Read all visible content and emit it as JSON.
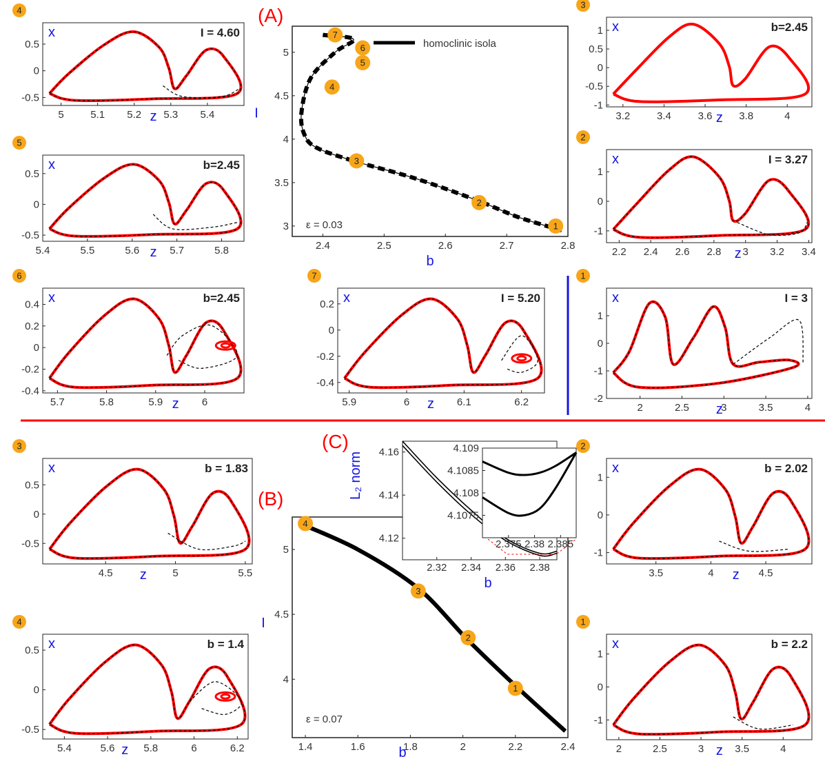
{
  "figure": {
    "labels": {
      "A": "(A)",
      "B": "(B)",
      "C": "(C)"
    },
    "colors": {
      "red": "#ff0000",
      "black": "#000000",
      "blue": "#1515e0",
      "badge": "#f7a619"
    }
  },
  "chart_data": [
    {
      "id": "A_main",
      "type": "line",
      "title": "",
      "xlabel": "b",
      "ylabel": "I",
      "xlim": [
        2.35,
        2.8
      ],
      "ylim": [
        2.88,
        5.3
      ],
      "xticks": [
        2.4,
        2.5,
        2.6,
        2.7,
        2.8
      ],
      "yticks": [
        3,
        3.5,
        4,
        4.5,
        5
      ],
      "legend": "homoclinic isola",
      "annotation": "ε = 0.03",
      "series": [
        {
          "name": "homoclinic isola",
          "x": [
            2.4,
            2.45,
            2.42,
            2.38,
            2.365,
            2.37,
            2.39,
            2.45,
            2.55,
            2.65,
            2.72,
            2.79
          ],
          "y": [
            5.2,
            5.15,
            5.0,
            4.7,
            4.3,
            4.05,
            3.9,
            3.75,
            3.55,
            3.3,
            3.1,
            2.95
          ]
        }
      ],
      "markers": [
        {
          "label": "7",
          "x": 2.42,
          "y": 5.2
        },
        {
          "label": "6",
          "x": 2.465,
          "y": 5.05
        },
        {
          "label": "5",
          "x": 2.465,
          "y": 4.88
        },
        {
          "label": "4",
          "x": 2.415,
          "y": 4.6
        },
        {
          "label": "3",
          "x": 2.455,
          "y": 3.75
        },
        {
          "label": "2",
          "x": 2.655,
          "y": 3.27
        },
        {
          "label": "1",
          "x": 2.78,
          "y": 3.0
        }
      ]
    },
    {
      "id": "B_main",
      "type": "line",
      "title": "",
      "xlabel": "b",
      "ylabel": "I",
      "xlim": [
        1.35,
        2.4
      ],
      "ylim": [
        3.55,
        5.25
      ],
      "xticks": [
        1.4,
        1.6,
        1.8,
        2,
        2.2,
        2.4
      ],
      "yticks": [
        4,
        4.5,
        5
      ],
      "annotation": "ε = 0.07",
      "series": [
        {
          "name": "",
          "x": [
            1.38,
            1.6,
            1.83,
            2.02,
            2.2,
            2.39
          ],
          "y": [
            5.2,
            5.0,
            4.7,
            4.3,
            3.95,
            3.6
          ]
        }
      ],
      "markers": [
        {
          "label": "4",
          "x": 1.4,
          "y": 5.2
        },
        {
          "label": "3",
          "x": 1.83,
          "y": 4.68
        },
        {
          "label": "2",
          "x": 2.02,
          "y": 4.32
        },
        {
          "label": "1",
          "x": 2.2,
          "y": 3.93
        }
      ]
    },
    {
      "id": "C_inset",
      "type": "line",
      "title": "",
      "xlabel": "b",
      "ylabel": "L₂ norm",
      "xlim": [
        2.3,
        2.39
      ],
      "ylim": [
        4.11,
        4.165
      ],
      "xticks": [
        2.32,
        2.34,
        2.36,
        2.38
      ],
      "yticks": [
        4.12,
        4.14,
        4.16
      ],
      "series": [
        {
          "name": "",
          "x": [
            2.3,
            2.32,
            2.34,
            2.36,
            2.38,
            2.39
          ],
          "y": [
            4.165,
            4.148,
            4.133,
            4.12,
            4.113,
            4.114
          ]
        },
        {
          "name": "",
          "x": [
            2.3,
            2.32,
            2.34,
            2.36,
            2.38,
            2.39
          ],
          "y": [
            4.163,
            4.146,
            4.131,
            4.119,
            4.112,
            4.113
          ]
        }
      ]
    },
    {
      "id": "C_zoom",
      "type": "line",
      "title": "",
      "xlabel": "",
      "ylabel": "",
      "xlim": [
        2.37,
        2.388
      ],
      "ylim": [
        4.107,
        4.109
      ],
      "xticks": [
        2.375,
        2.38,
        2.385
      ],
      "yticks": [
        4.1075,
        4.108,
        4.1085,
        4.109
      ],
      "series": [
        {
          "name": "",
          "x": [
            2.37,
            2.375,
            2.378,
            2.381,
            2.384,
            2.388
          ],
          "y": [
            4.1087,
            4.10845,
            4.1084,
            4.10845,
            4.1086,
            4.1089
          ]
        },
        {
          "name": "",
          "x": [
            2.37,
            2.375,
            2.378,
            2.381,
            2.384,
            2.388
          ],
          "y": [
            4.1079,
            4.10755,
            4.1075,
            4.10765,
            4.1081,
            4.1089
          ]
        }
      ]
    },
    {
      "id": "A4",
      "type": "line",
      "badge": "4",
      "title": "I = 4.60",
      "xlabel": "z",
      "ylabel": "x",
      "xlim": [
        4.95,
        5.5
      ],
      "ylim": [
        -0.65,
        0.9
      ],
      "xticks": [
        5,
        5.1,
        5.2,
        5.3,
        5.4
      ],
      "yticks": [
        -0.5,
        0,
        0.5
      ]
    },
    {
      "id": "A5",
      "type": "line",
      "badge": "5",
      "title": "b=2.45",
      "xlabel": "z",
      "ylabel": "x",
      "xlim": [
        5.4,
        5.85
      ],
      "ylim": [
        -0.6,
        0.8
      ],
      "xticks": [
        5.4,
        5.5,
        5.6,
        5.7,
        5.8
      ],
      "yticks": [
        -0.5,
        0,
        0.5
      ]
    },
    {
      "id": "A6",
      "type": "line",
      "badge": "6",
      "title": "b=2.45",
      "xlabel": "z",
      "ylabel": "x",
      "xlim": [
        5.67,
        6.08
      ],
      "ylim": [
        -0.42,
        0.55
      ],
      "xticks": [
        5.7,
        5.8,
        5.9,
        6
      ],
      "yticks": [
        -0.4,
        -0.2,
        0,
        0.2,
        0.4
      ]
    },
    {
      "id": "A7",
      "type": "line",
      "badge": "7",
      "title": "I = 5.20",
      "xlabel": "z",
      "ylabel": "x",
      "xlim": [
        5.88,
        6.24
      ],
      "ylim": [
        -0.48,
        0.32
      ],
      "xticks": [
        5.9,
        6,
        6.1,
        6.2
      ],
      "yticks": [
        -0.4,
        -0.2,
        0,
        0.2
      ]
    },
    {
      "id": "A3",
      "type": "line",
      "badge": "3",
      "title": "b=2.45",
      "xlabel": "z",
      "ylabel": "x",
      "xlim": [
        3.12,
        4.12
      ],
      "ylim": [
        -1.05,
        1.35
      ],
      "xticks": [
        3.2,
        3.4,
        3.6,
        3.8,
        4
      ],
      "yticks": [
        -1,
        -0.5,
        0,
        0.5,
        1
      ]
    },
    {
      "id": "A2",
      "type": "line",
      "badge": "2",
      "title": "I = 3.27",
      "xlabel": "z",
      "ylabel": "x",
      "xlim": [
        2.12,
        3.42
      ],
      "ylim": [
        -1.4,
        1.75
      ],
      "xticks": [
        2.2,
        2.4,
        2.6,
        2.8,
        3,
        3.2,
        3.4
      ],
      "yticks": [
        -1,
        0,
        1
      ]
    },
    {
      "id": "A1",
      "type": "line",
      "badge": "1",
      "title": "I = 3",
      "xlabel": "z",
      "ylabel": "x",
      "xlim": [
        1.6,
        4.05
      ],
      "ylim": [
        -2.0,
        2.0
      ],
      "xticks": [
        2,
        2.5,
        3,
        3.5,
        4
      ],
      "yticks": [
        -2,
        -1,
        0,
        1
      ]
    },
    {
      "id": "B3",
      "type": "line",
      "badge": "3",
      "title": "b = 1.83",
      "xlabel": "z",
      "ylabel": "x",
      "xlim": [
        4.05,
        5.55
      ],
      "ylim": [
        -0.85,
        0.95
      ],
      "xticks": [
        4.5,
        5,
        5.5
      ],
      "yticks": [
        -0.5,
        0,
        0.5
      ]
    },
    {
      "id": "B4",
      "type": "line",
      "badge": "4",
      "title": "b = 1.4",
      "xlabel": "z",
      "ylabel": "x",
      "xlim": [
        5.3,
        6.25
      ],
      "ylim": [
        -0.62,
        0.7
      ],
      "xticks": [
        5.4,
        5.6,
        5.8,
        6,
        6.2
      ],
      "yticks": [
        -0.5,
        0,
        0.5
      ]
    },
    {
      "id": "B2",
      "type": "line",
      "badge": "2",
      "title": "b = 2.02",
      "xlabel": "z",
      "ylabel": "x",
      "xlim": [
        3.05,
        4.92
      ],
      "ylim": [
        -1.3,
        1.5
      ],
      "xticks": [
        3.5,
        4,
        4.5
      ],
      "yticks": [
        -1,
        0,
        1
      ]
    },
    {
      "id": "B1",
      "type": "line",
      "badge": "1",
      "title": "b = 2.2",
      "xlabel": "z",
      "ylabel": "x",
      "xlim": [
        1.85,
        4.35
      ],
      "ylim": [
        -1.6,
        1.6
      ],
      "xticks": [
        2,
        2.5,
        3,
        3.5,
        4
      ],
      "yticks": [
        -1,
        0,
        1
      ]
    }
  ]
}
